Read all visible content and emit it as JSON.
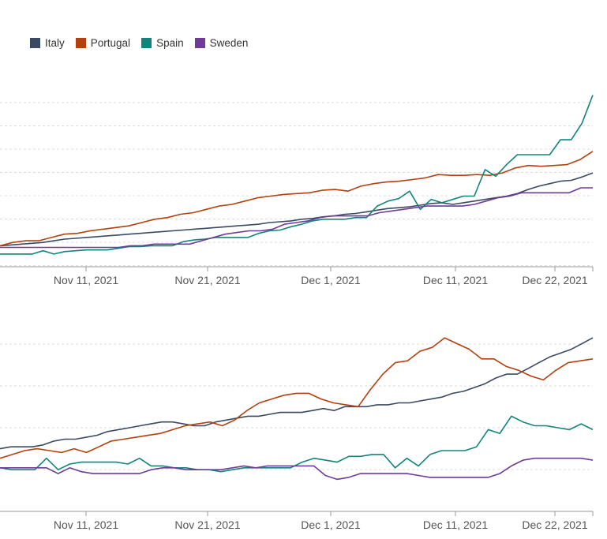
{
  "legend": [
    {
      "name": "Italy",
      "color": "#3a4a63"
    },
    {
      "name": "Portugal",
      "color": "#b4400f"
    },
    {
      "name": "Spain",
      "color": "#11857a"
    },
    {
      "name": "Sweden",
      "color": "#6e3c98"
    }
  ],
  "chart_data": [
    {
      "type": "line",
      "title": "",
      "xlabel": "",
      "ylabel": "",
      "x_start": "2021-11-03",
      "x_ticks": [
        "Nov 11, 2021",
        "Nov 21, 2021",
        "Dec 1, 2021",
        "Dec 11, 2021",
        "Dec 22, 2021"
      ],
      "gridlines": 8,
      "series": [
        {
          "name": "Italy",
          "color": "#3a4a63",
          "values": [
            0.6,
            0.65,
            0.7,
            0.75,
            0.8,
            0.9,
            1.0,
            1.05,
            1.1,
            1.15,
            1.2,
            1.25,
            1.3,
            1.35,
            1.4,
            1.45,
            1.5,
            1.55,
            1.6,
            1.65,
            1.7,
            1.75,
            1.8,
            1.85,
            1.9,
            2.0,
            2.05,
            2.1,
            2.2,
            2.25,
            2.35,
            2.4,
            2.5,
            2.55,
            2.65,
            2.75,
            2.85,
            2.9,
            2.95,
            3.05,
            3.15,
            3.2,
            3.1,
            3.2,
            3.3,
            3.4,
            3.5,
            3.6,
            3.75,
            4.0,
            4.2,
            4.35,
            4.5,
            4.55,
            4.75,
            5.0
          ]
        },
        {
          "name": "Portugal",
          "color": "#b4400f",
          "values": [
            0.6,
            0.8,
            0.9,
            0.9,
            1.1,
            1.3,
            1.35,
            1.5,
            1.6,
            1.7,
            1.8,
            2.0,
            2.2,
            2.3,
            2.5,
            2.6,
            2.8,
            3.0,
            3.1,
            3.3,
            3.5,
            3.6,
            3.7,
            3.75,
            3.8,
            3.95,
            4.0,
            3.9,
            4.2,
            4.35,
            4.45,
            4.5,
            4.6,
            4.7,
            4.9,
            4.85,
            4.85,
            4.9,
            4.85,
            5.0,
            5.3,
            5.45,
            5.4,
            5.45,
            5.5,
            5.8,
            6.3
          ]
        },
        {
          "name": "Spain",
          "color": "#11857a",
          "values": [
            0.1,
            0.1,
            0.1,
            0.1,
            0.3,
            0.1,
            0.25,
            0.3,
            0.35,
            0.35,
            0.35,
            0.45,
            0.55,
            0.55,
            0.6,
            0.6,
            0.6,
            0.85,
            0.95,
            1.0,
            1.1,
            1.1,
            1.1,
            1.1,
            1.35,
            1.5,
            1.55,
            1.75,
            1.9,
            2.1,
            2.2,
            2.2,
            2.2,
            2.3,
            2.3,
            3.0,
            3.3,
            3.45,
            3.9,
            2.8,
            3.4,
            3.2,
            3.4,
            3.6,
            3.6,
            5.2,
            4.8,
            5.5,
            6.1,
            6.1,
            6.1,
            6.1,
            7.0,
            7.0,
            8.0,
            9.7
          ]
        },
        {
          "name": "Sweden",
          "color": "#6e3c98",
          "values": [
            0.5,
            0.5,
            0.5,
            0.5,
            0.5,
            0.5,
            0.5,
            0.5,
            0.5,
            0.5,
            0.5,
            0.6,
            0.6,
            0.7,
            0.7,
            0.7,
            0.7,
            0.9,
            1.1,
            1.3,
            1.4,
            1.5,
            1.5,
            1.6,
            1.9,
            2.0,
            2.1,
            2.3,
            2.4,
            2.4,
            2.4,
            2.4,
            2.6,
            2.7,
            2.8,
            2.9,
            3.0,
            3.0,
            3.0,
            3.0,
            3.1,
            3.3,
            3.5,
            3.6,
            3.8,
            3.8,
            3.8,
            3.8,
            3.8,
            4.1,
            4.1
          ]
        }
      ]
    },
    {
      "type": "line",
      "title": "",
      "xlabel": "",
      "ylabel": "",
      "x_start": "2021-11-03",
      "x_ticks": [
        "Nov 11, 2021",
        "Nov 21, 2021",
        "Dec 1, 2021",
        "Dec 11, 2021",
        "Dec 22, 2021"
      ],
      "gridlines": 5,
      "series": [
        {
          "name": "Italy",
          "color": "#3a4a63",
          "values": [
            1.35,
            1.4,
            1.4,
            1.4,
            1.45,
            1.55,
            1.6,
            1.6,
            1.65,
            1.7,
            1.8,
            1.85,
            1.9,
            1.95,
            2.0,
            2.05,
            2.05,
            2.0,
            1.95,
            1.95,
            2.05,
            2.1,
            2.15,
            2.2,
            2.2,
            2.25,
            2.3,
            2.3,
            2.3,
            2.35,
            2.4,
            2.35,
            2.45,
            2.45,
            2.45,
            2.5,
            2.5,
            2.55,
            2.55,
            2.6,
            2.65,
            2.7,
            2.8,
            2.85,
            2.95,
            3.05,
            3.2,
            3.3,
            3.3,
            3.45,
            3.6,
            3.75,
            3.85,
            3.95,
            4.1,
            4.25
          ]
        },
        {
          "name": "Portugal",
          "color": "#b4400f",
          "values": [
            1.1,
            1.2,
            1.3,
            1.35,
            1.3,
            1.25,
            1.35,
            1.25,
            1.4,
            1.55,
            1.6,
            1.65,
            1.7,
            1.75,
            1.85,
            1.95,
            2.0,
            2.05,
            1.95,
            2.1,
            2.35,
            2.55,
            2.65,
            2.75,
            2.8,
            2.8,
            2.65,
            2.55,
            2.5,
            2.45,
            2.9,
            3.3,
            3.6,
            3.65,
            3.9,
            4.0,
            4.25,
            4.1,
            3.95,
            3.7,
            3.7,
            3.5,
            3.4,
            3.25,
            3.15,
            3.4,
            3.6,
            3.65,
            3.7
          ]
        },
        {
          "name": "Spain",
          "color": "#11857a",
          "values": [
            0.85,
            0.8,
            0.8,
            0.8,
            1.1,
            0.8,
            0.95,
            1.0,
            1.0,
            1.0,
            1.0,
            0.95,
            1.1,
            0.9,
            0.9,
            0.85,
            0.85,
            0.8,
            0.8,
            0.75,
            0.8,
            0.85,
            0.85,
            0.85,
            0.85,
            0.85,
            1.0,
            1.1,
            1.05,
            1.0,
            1.15,
            1.15,
            1.2,
            1.2,
            0.85,
            1.1,
            0.9,
            1.2,
            1.3,
            1.3,
            1.3,
            1.4,
            1.85,
            1.75,
            2.2,
            2.05,
            1.95,
            1.95,
            1.9,
            1.85,
            2.0,
            1.85
          ]
        },
        {
          "name": "Sweden",
          "color": "#6e3c98",
          "values": [
            0.85,
            0.85,
            0.85,
            0.85,
            0.85,
            0.7,
            0.85,
            0.75,
            0.7,
            0.7,
            0.7,
            0.7,
            0.7,
            0.8,
            0.85,
            0.85,
            0.8,
            0.8,
            0.8,
            0.8,
            0.85,
            0.9,
            0.85,
            0.9,
            0.9,
            0.9,
            0.9,
            0.9,
            0.65,
            0.55,
            0.6,
            0.7,
            0.7,
            0.7,
            0.7,
            0.7,
            0.65,
            0.6,
            0.6,
            0.6,
            0.6,
            0.6,
            0.6,
            0.7,
            0.9,
            1.05,
            1.1,
            1.1,
            1.1,
            1.1,
            1.1,
            1.05
          ]
        }
      ]
    }
  ]
}
